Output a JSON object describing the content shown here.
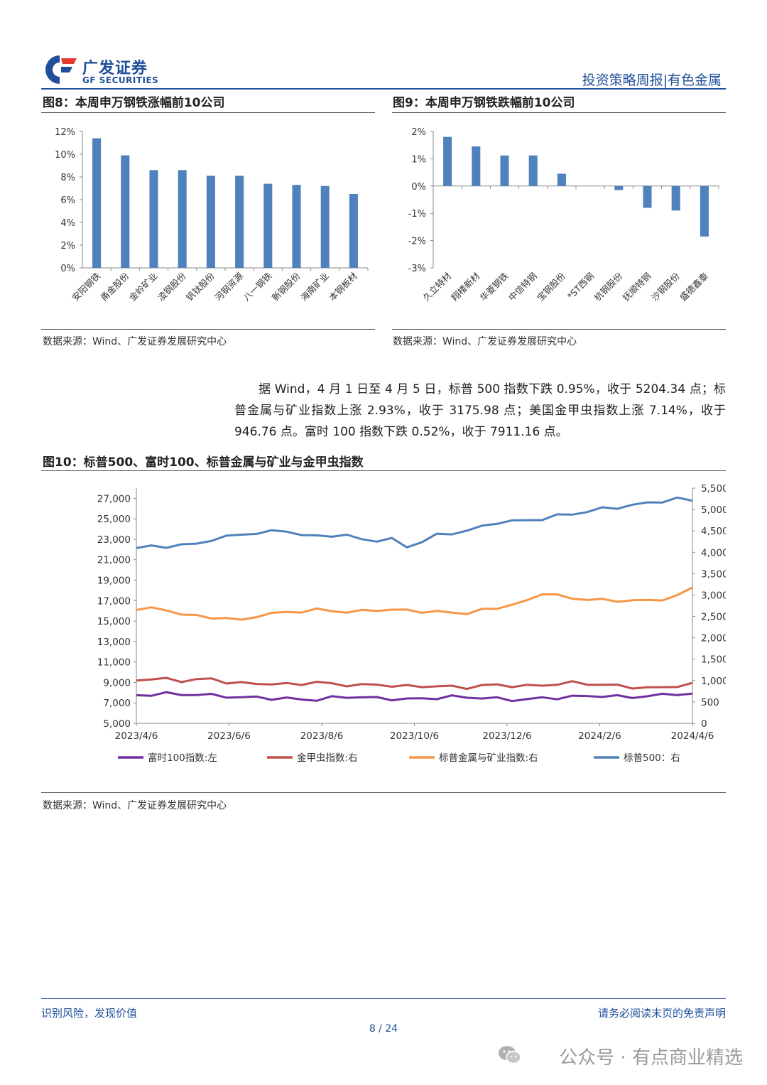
{
  "header": {
    "logo_cn": "广发证券",
    "logo_en": "GF SECURITIES",
    "report_type": "投资策略周报|有色金属",
    "colors": {
      "brand": "#1f4e9a",
      "brand_red": "#e53a2e"
    }
  },
  "figure8": {
    "title": "图8：本周申万钢铁涨幅前10公司",
    "source": "数据来源：Wind、广发证券发展研究中心"
  },
  "figure9": {
    "title": "图9：本周申万钢铁跌幅前10公司",
    "source": "数据来源：Wind、广发证券发展研究中心"
  },
  "paragraph": "据 Wind，4 月 1 日至 4 月 5 日，标普 500 指数下跌 0.95%，收于 5204.34 点；标普金属与矿业指数上涨 2.93%，收于 3175.98 点；美国金甲虫指数上涨 7.14%，收于 946.76 点。富时 100 指数下跌 0.52%，收于 7911.16 点。",
  "figure10": {
    "title": "图10：标普500、富时100、标普金属与矿业与金甲虫指数",
    "source": "数据来源：Wind、广发证券发展研究中心"
  },
  "chart_data": [
    {
      "type": "bar",
      "categories": [
        "安阳钢铁",
        "甬金股份",
        "金岭矿业",
        "凌钢股份",
        "钒钛股份",
        "河钢资源",
        "八一钢铁",
        "新钢股份",
        "海南矿业",
        "本钢板材"
      ],
      "values": [
        11.4,
        9.9,
        8.6,
        8.6,
        8.1,
        8.1,
        7.4,
        7.3,
        7.2,
        6.5
      ],
      "unit": "%",
      "ylim": [
        0,
        12
      ],
      "yticks": [
        "0%",
        "2%",
        "4%",
        "6%",
        "8%",
        "10%",
        "12%"
      ],
      "color": "#4f81bd"
    },
    {
      "type": "bar",
      "categories": [
        "久立特材",
        "翔楼新材",
        "华菱钢铁",
        "中信特钢",
        "宝钢股份",
        "*ST西钢",
        "杭钢股份",
        "抚顺特钢",
        "沙钢股份",
        "盛德鑫泰"
      ],
      "values": [
        1.8,
        1.45,
        1.12,
        1.12,
        0.45,
        0.0,
        -0.15,
        -0.8,
        -0.9,
        -1.85
      ],
      "unit": "%",
      "ylim": [
        -3,
        2
      ],
      "yticks": [
        "-3%",
        "-2%",
        "-1%",
        "0%",
        "1%",
        "2%"
      ],
      "color": "#4f81bd"
    },
    {
      "type": "line",
      "x_ticks": [
        "2023/4/6",
        "2023/6/6",
        "2023/8/6",
        "2023/10/6",
        "2023/12/6",
        "2024/2/6",
        "2024/4/6"
      ],
      "y_left": {
        "ylim": [
          5000,
          28000
        ],
        "ticks": [
          "5,000",
          "7,000",
          "9,000",
          "11,000",
          "13,000",
          "15,000",
          "17,000",
          "19,000",
          "21,000",
          "23,000",
          "25,000",
          "27,000"
        ]
      },
      "y_right": {
        "ylim": [
          0,
          5500
        ],
        "ticks": [
          "0",
          "500",
          "1,000",
          "1,500",
          "2,000",
          "2,500",
          "3,000",
          "3,500",
          "4,000",
          "4,500",
          "5,000",
          "5,500"
        ]
      },
      "series": [
        {
          "name": "富时100指数:左",
          "axis": "left",
          "color": "#7030a0",
          "values": [
            7750,
            7800,
            7900,
            7850,
            7800,
            7750,
            7650,
            7500,
            7550,
            7450,
            7400,
            7350,
            7300,
            7500,
            7600,
            7550,
            7450,
            7400,
            7350,
            7400,
            7500,
            7600,
            7550,
            7500,
            7400,
            7300,
            7350,
            7450,
            7500,
            7600,
            7650,
            7700,
            7600,
            7550,
            7700,
            7750,
            7900,
            7911
          ]
        },
        {
          "name": "金甲虫指数:右",
          "axis": "right",
          "color": "#c0504d",
          "values": [
            1000,
            1020,
            1040,
            1000,
            1010,
            1050,
            960,
            930,
            940,
            920,
            910,
            930,
            960,
            920,
            900,
            890,
            910,
            880,
            860,
            870,
            870,
            850,
            840,
            880,
            900,
            880,
            870,
            890,
            920,
            950,
            930,
            900,
            880,
            850,
            820,
            840,
            880,
            946.76
          ]
        },
        {
          "name": "标普金属与矿业指数:右",
          "axis": "right",
          "color": "#f79646",
          "values": [
            2650,
            2680,
            2650,
            2560,
            2500,
            2480,
            2460,
            2400,
            2520,
            2560,
            2600,
            2620,
            2650,
            2640,
            2600,
            2620,
            2660,
            2650,
            2640,
            2620,
            2600,
            2590,
            2580,
            2640,
            2700,
            2780,
            2850,
            3050,
            3000,
            2900,
            2920,
            2880,
            2850,
            2900,
            2850,
            2900,
            3000,
            3175.98
          ]
        },
        {
          "name": "标普500：右",
          "axis": "right",
          "color": "#4f81bd",
          "values": [
            4100,
            4130,
            4140,
            4170,
            4190,
            4300,
            4360,
            4420,
            4450,
            4480,
            4510,
            4400,
            4370,
            4400,
            4390,
            4300,
            4280,
            4300,
            4130,
            4250,
            4400,
            4450,
            4500,
            4600,
            4700,
            4720,
            4750,
            4780,
            4850,
            4900,
            4950,
            5020,
            5050,
            5100,
            5150,
            5200,
            5250,
            5204.34
          ]
        }
      ]
    }
  ],
  "footer": {
    "left": "识别风险，发现价值",
    "right": "请务必阅读末页的免责声明",
    "page": "8 / 24"
  },
  "watermark": "公众号 · 有点商业精选"
}
